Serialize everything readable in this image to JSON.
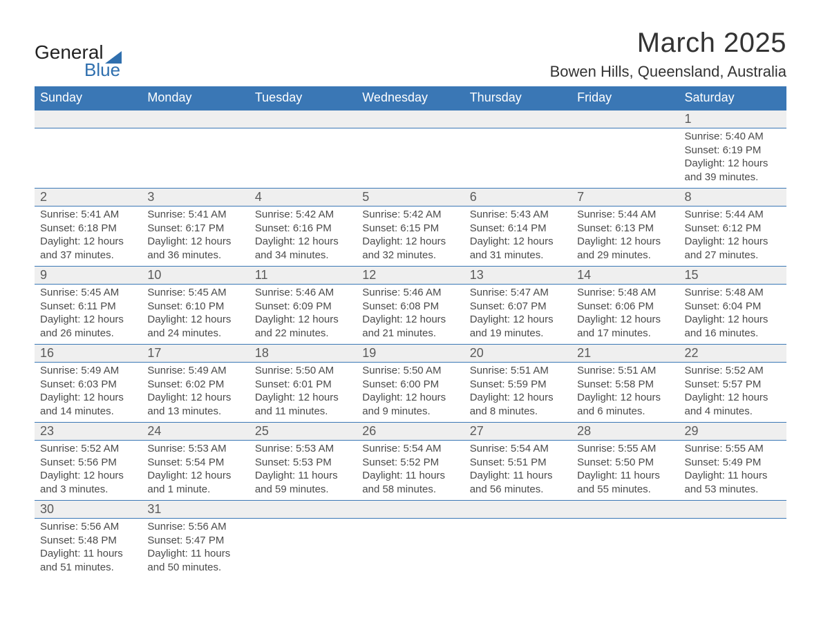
{
  "logo": {
    "general": "General",
    "blue": "Blue",
    "triangle_color": "#2f6fae"
  },
  "title": "March 2025",
  "location": "Bowen Hills, Queensland, Australia",
  "colors": {
    "header_bg": "#3a77b5",
    "header_fg": "#ffffff",
    "daynum_bg": "#efefef",
    "text": "#4a4a4a",
    "rule": "#3a77b5"
  },
  "columns": [
    "Sunday",
    "Monday",
    "Tuesday",
    "Wednesday",
    "Thursday",
    "Friday",
    "Saturday"
  ],
  "weeks": [
    [
      null,
      null,
      null,
      null,
      null,
      null,
      {
        "n": "1",
        "sunrise": "Sunrise: 5:40 AM",
        "sunset": "Sunset: 6:19 PM",
        "daylight1": "Daylight: 12 hours",
        "daylight2": "and 39 minutes."
      }
    ],
    [
      {
        "n": "2",
        "sunrise": "Sunrise: 5:41 AM",
        "sunset": "Sunset: 6:18 PM",
        "daylight1": "Daylight: 12 hours",
        "daylight2": "and 37 minutes."
      },
      {
        "n": "3",
        "sunrise": "Sunrise: 5:41 AM",
        "sunset": "Sunset: 6:17 PM",
        "daylight1": "Daylight: 12 hours",
        "daylight2": "and 36 minutes."
      },
      {
        "n": "4",
        "sunrise": "Sunrise: 5:42 AM",
        "sunset": "Sunset: 6:16 PM",
        "daylight1": "Daylight: 12 hours",
        "daylight2": "and 34 minutes."
      },
      {
        "n": "5",
        "sunrise": "Sunrise: 5:42 AM",
        "sunset": "Sunset: 6:15 PM",
        "daylight1": "Daylight: 12 hours",
        "daylight2": "and 32 minutes."
      },
      {
        "n": "6",
        "sunrise": "Sunrise: 5:43 AM",
        "sunset": "Sunset: 6:14 PM",
        "daylight1": "Daylight: 12 hours",
        "daylight2": "and 31 minutes."
      },
      {
        "n": "7",
        "sunrise": "Sunrise: 5:44 AM",
        "sunset": "Sunset: 6:13 PM",
        "daylight1": "Daylight: 12 hours",
        "daylight2": "and 29 minutes."
      },
      {
        "n": "8",
        "sunrise": "Sunrise: 5:44 AM",
        "sunset": "Sunset: 6:12 PM",
        "daylight1": "Daylight: 12 hours",
        "daylight2": "and 27 minutes."
      }
    ],
    [
      {
        "n": "9",
        "sunrise": "Sunrise: 5:45 AM",
        "sunset": "Sunset: 6:11 PM",
        "daylight1": "Daylight: 12 hours",
        "daylight2": "and 26 minutes."
      },
      {
        "n": "10",
        "sunrise": "Sunrise: 5:45 AM",
        "sunset": "Sunset: 6:10 PM",
        "daylight1": "Daylight: 12 hours",
        "daylight2": "and 24 minutes."
      },
      {
        "n": "11",
        "sunrise": "Sunrise: 5:46 AM",
        "sunset": "Sunset: 6:09 PM",
        "daylight1": "Daylight: 12 hours",
        "daylight2": "and 22 minutes."
      },
      {
        "n": "12",
        "sunrise": "Sunrise: 5:46 AM",
        "sunset": "Sunset: 6:08 PM",
        "daylight1": "Daylight: 12 hours",
        "daylight2": "and 21 minutes."
      },
      {
        "n": "13",
        "sunrise": "Sunrise: 5:47 AM",
        "sunset": "Sunset: 6:07 PM",
        "daylight1": "Daylight: 12 hours",
        "daylight2": "and 19 minutes."
      },
      {
        "n": "14",
        "sunrise": "Sunrise: 5:48 AM",
        "sunset": "Sunset: 6:06 PM",
        "daylight1": "Daylight: 12 hours",
        "daylight2": "and 17 minutes."
      },
      {
        "n": "15",
        "sunrise": "Sunrise: 5:48 AM",
        "sunset": "Sunset: 6:04 PM",
        "daylight1": "Daylight: 12 hours",
        "daylight2": "and 16 minutes."
      }
    ],
    [
      {
        "n": "16",
        "sunrise": "Sunrise: 5:49 AM",
        "sunset": "Sunset: 6:03 PM",
        "daylight1": "Daylight: 12 hours",
        "daylight2": "and 14 minutes."
      },
      {
        "n": "17",
        "sunrise": "Sunrise: 5:49 AM",
        "sunset": "Sunset: 6:02 PM",
        "daylight1": "Daylight: 12 hours",
        "daylight2": "and 13 minutes."
      },
      {
        "n": "18",
        "sunrise": "Sunrise: 5:50 AM",
        "sunset": "Sunset: 6:01 PM",
        "daylight1": "Daylight: 12 hours",
        "daylight2": "and 11 minutes."
      },
      {
        "n": "19",
        "sunrise": "Sunrise: 5:50 AM",
        "sunset": "Sunset: 6:00 PM",
        "daylight1": "Daylight: 12 hours",
        "daylight2": "and 9 minutes."
      },
      {
        "n": "20",
        "sunrise": "Sunrise: 5:51 AM",
        "sunset": "Sunset: 5:59 PM",
        "daylight1": "Daylight: 12 hours",
        "daylight2": "and 8 minutes."
      },
      {
        "n": "21",
        "sunrise": "Sunrise: 5:51 AM",
        "sunset": "Sunset: 5:58 PM",
        "daylight1": "Daylight: 12 hours",
        "daylight2": "and 6 minutes."
      },
      {
        "n": "22",
        "sunrise": "Sunrise: 5:52 AM",
        "sunset": "Sunset: 5:57 PM",
        "daylight1": "Daylight: 12 hours",
        "daylight2": "and 4 minutes."
      }
    ],
    [
      {
        "n": "23",
        "sunrise": "Sunrise: 5:52 AM",
        "sunset": "Sunset: 5:56 PM",
        "daylight1": "Daylight: 12 hours",
        "daylight2": "and 3 minutes."
      },
      {
        "n": "24",
        "sunrise": "Sunrise: 5:53 AM",
        "sunset": "Sunset: 5:54 PM",
        "daylight1": "Daylight: 12 hours",
        "daylight2": "and 1 minute."
      },
      {
        "n": "25",
        "sunrise": "Sunrise: 5:53 AM",
        "sunset": "Sunset: 5:53 PM",
        "daylight1": "Daylight: 11 hours",
        "daylight2": "and 59 minutes."
      },
      {
        "n": "26",
        "sunrise": "Sunrise: 5:54 AM",
        "sunset": "Sunset: 5:52 PM",
        "daylight1": "Daylight: 11 hours",
        "daylight2": "and 58 minutes."
      },
      {
        "n": "27",
        "sunrise": "Sunrise: 5:54 AM",
        "sunset": "Sunset: 5:51 PM",
        "daylight1": "Daylight: 11 hours",
        "daylight2": "and 56 minutes."
      },
      {
        "n": "28",
        "sunrise": "Sunrise: 5:55 AM",
        "sunset": "Sunset: 5:50 PM",
        "daylight1": "Daylight: 11 hours",
        "daylight2": "and 55 minutes."
      },
      {
        "n": "29",
        "sunrise": "Sunrise: 5:55 AM",
        "sunset": "Sunset: 5:49 PM",
        "daylight1": "Daylight: 11 hours",
        "daylight2": "and 53 minutes."
      }
    ],
    [
      {
        "n": "30",
        "sunrise": "Sunrise: 5:56 AM",
        "sunset": "Sunset: 5:48 PM",
        "daylight1": "Daylight: 11 hours",
        "daylight2": "and 51 minutes."
      },
      {
        "n": "31",
        "sunrise": "Sunrise: 5:56 AM",
        "sunset": "Sunset: 5:47 PM",
        "daylight1": "Daylight: 11 hours",
        "daylight2": "and 50 minutes."
      },
      null,
      null,
      null,
      null,
      null
    ]
  ]
}
